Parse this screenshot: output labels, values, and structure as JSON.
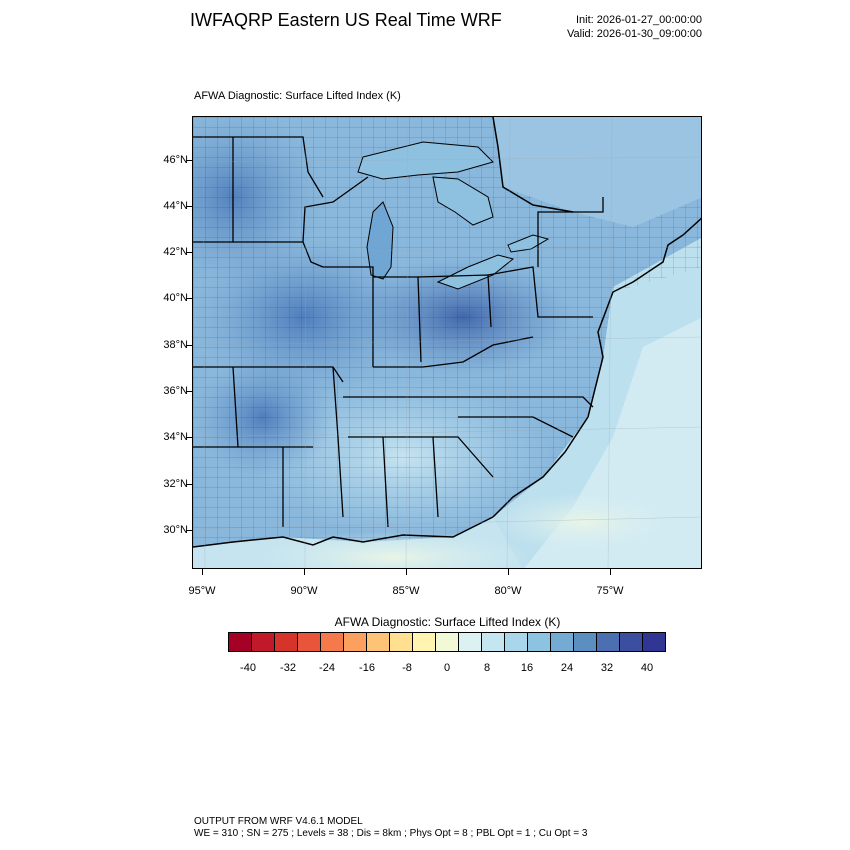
{
  "title": "IWFAQRP Eastern US Real Time WRF",
  "init_time": "Init: 2026-01-27_00:00:00",
  "valid_time": "Valid: 2026-01-30_09:00:00",
  "map_subtitle": "AFWA Diagnostic: Surface Lifted Index   (K)",
  "lat_labels": [
    "46°N",
    "44°N",
    "42°N",
    "40°N",
    "38°N",
    "36°N",
    "34°N",
    "32°N",
    "30°N"
  ],
  "lon_labels": [
    "95°W",
    "90°W",
    "85°W",
    "80°W",
    "75°W"
  ],
  "colorbar": {
    "title": "AFWA Diagnostic: Surface Lifted Index  (K)",
    "labels": [
      "-40",
      "-32",
      "-24",
      "-16",
      "-8",
      "0",
      "8",
      "16",
      "24",
      "32",
      "40"
    ],
    "colors": [
      "#a50026",
      "#c2192a",
      "#d6342b",
      "#e8553a",
      "#f47a4c",
      "#fba05e",
      "#fdc377",
      "#fee090",
      "#fff4b0",
      "#f1f9d6",
      "#dcf1f2",
      "#c4e6f1",
      "#a9d6ea",
      "#8cc3e0",
      "#73abd2",
      "#5b8fc2",
      "#4b6fb0",
      "#3b4ea0",
      "#313695"
    ]
  },
  "footer": {
    "line1": "OUTPUT FROM WRF V4.6.1 MODEL",
    "line2": "WE = 310 ; SN = 275 ; Levels = 38 ; Dis = 8km ; Phys Opt = 8 ; PBL Opt = 1 ; Cu Opt = 3"
  }
}
